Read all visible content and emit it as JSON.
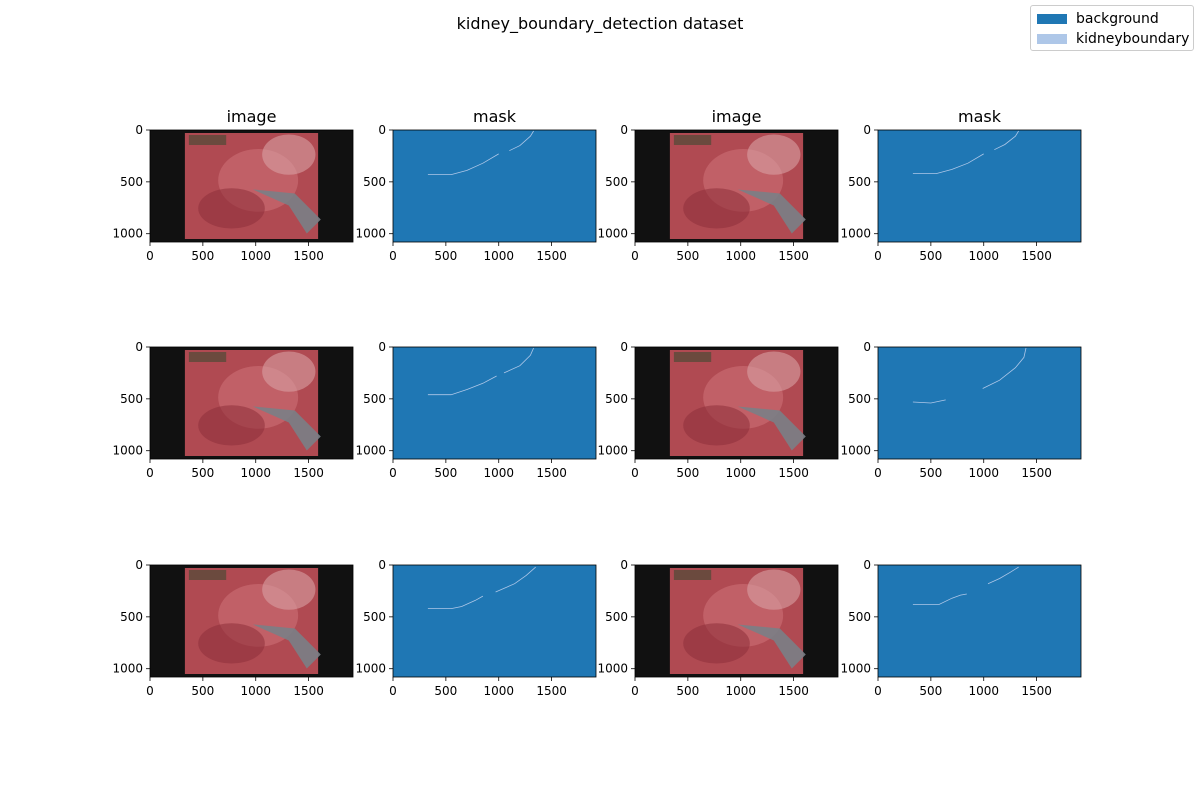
{
  "title": "kidney_boundary_detection dataset",
  "legend": {
    "items": [
      {
        "label": "background",
        "color": "#1f77b4"
      },
      {
        "label": "kidneyboundary",
        "color": "#aec7e8"
      }
    ]
  },
  "colors": {
    "photo_bg": "#111111",
    "tissue": "#b04a52",
    "mask_bg": "#1f77b4",
    "boundary": "#aec7e8"
  },
  "panel_titles": [
    "image",
    "mask",
    "image",
    "mask"
  ],
  "axes": {
    "x_ticks": [
      "0",
      "500",
      "1000",
      "1500"
    ],
    "y_ticks": [
      "0",
      "500",
      "1000"
    ]
  }
}
